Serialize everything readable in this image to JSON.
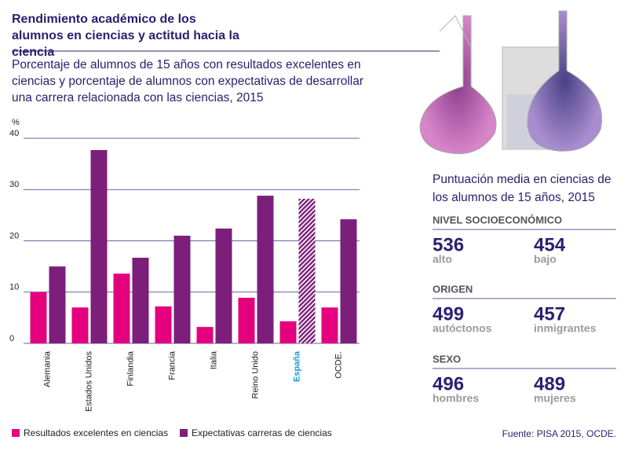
{
  "chart_data": {
    "type": "bar",
    "title": "Rendimiento académico de los alumnos en ciencias y actitud hacia la ciencia",
    "subtitle": "Porcentaje de alumnos de 15 años con resultados excelentes en ciencias y porcentaje de alumnos con expectativas de desarrollar una carrera relacionada con las ciencias, 2015",
    "y_label": "%",
    "categories": [
      "Alemania",
      "Estados Unidos",
      "Finlandia",
      "Francia",
      "Italia",
      "Reino Unido",
      "España",
      "OCDE."
    ],
    "series": [
      {
        "name": "Resultados excelentes en ciencias",
        "color": "#e5007e",
        "values": [
          10.0,
          7.0,
          13.6,
          7.2,
          3.2,
          8.9,
          4.3,
          7.0
        ]
      },
      {
        "name": "Expectativas carreras de ciencias",
        "color": "#7b1f7a",
        "values": [
          15.0,
          37.7,
          16.7,
          21.0,
          22.4,
          28.8,
          28.2,
          24.2
        ]
      }
    ],
    "highlight_index": 6,
    "highlight_color": "#1a9ad6",
    "ylim": [
      0,
      40
    ],
    "yticks": [
      0,
      10,
      20,
      30,
      40
    ],
    "grid": true,
    "source": "Fuente: PISA 2015, OCDE."
  },
  "panel": {
    "title": "Puntuación media en ciencias de los alumnos de 15 años, 2015",
    "sections": [
      {
        "heading": "NIVEL SOCIOECONÓMICO",
        "items": [
          {
            "value": 536,
            "label": "alto"
          },
          {
            "value": 454,
            "label": "bajo"
          }
        ]
      },
      {
        "heading": "ORIGEN",
        "items": [
          {
            "value": 499,
            "label": "autóctonos"
          },
          {
            "value": 457,
            "label": "inmigrantes"
          }
        ]
      },
      {
        "heading": "SEXO",
        "items": [
          {
            "value": 496,
            "label": "hombres"
          },
          {
            "value": 489,
            "label": "mujeres"
          }
        ]
      }
    ]
  }
}
